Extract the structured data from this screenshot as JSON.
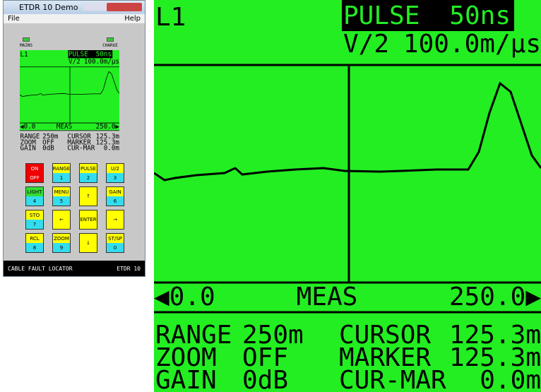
{
  "window": {
    "title": "ETDR 10 Demo",
    "menu": [
      "File",
      "Help"
    ]
  },
  "indicators": [
    "MAINS",
    "CHARGE"
  ],
  "display": {
    "line": "L1",
    "pulse_label": "PULSE",
    "pulse": "50ns",
    "vp_label": "V/2",
    "vp": "100.0m/µs",
    "left": "◀0.0",
    "mode": "MEAS",
    "right": "250.0▶",
    "params": [
      [
        "RANGE",
        "250m",
        "CURSOR",
        "125.3m"
      ],
      [
        "ZOOM",
        "OFF",
        "MARKER",
        "125.3m"
      ],
      [
        "GAIN",
        "0dB",
        "CUR-MAR",
        "0.0m"
      ]
    ]
  },
  "keys": [
    {
      "top": "ON",
      "bottom": "OFF"
    },
    {
      "top": "RANGE",
      "bottom": "1"
    },
    {
      "top": "PULSE",
      "bottom": "2"
    },
    {
      "top": "U/2",
      "bottom": "3"
    },
    {
      "top": "LIGHT",
      "bottom": "4"
    },
    {
      "top": "MENU",
      "bottom": "5"
    },
    {
      "label": "↑"
    },
    {
      "top": "GAIN",
      "bottom": "6"
    },
    {
      "top": "STO",
      "bottom": "7"
    },
    {
      "label": "←"
    },
    {
      "label": "ENTER"
    },
    {
      "label": "→"
    },
    {
      "top": "RCL",
      "bottom": "8"
    },
    {
      "top": "ZOOM",
      "bottom": "9"
    },
    {
      "label": "↓"
    },
    {
      "top": "ST/SP",
      "bottom": "0"
    }
  ],
  "footer": {
    "left": "CABLE FAULT LOCATOR",
    "right": "ETDR 10"
  }
}
